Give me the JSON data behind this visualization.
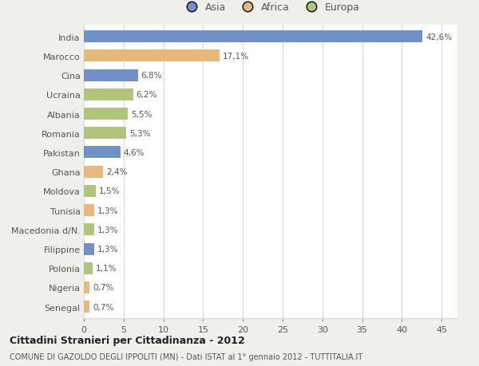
{
  "countries": [
    "India",
    "Marocco",
    "Cina",
    "Ucraina",
    "Albania",
    "Romania",
    "Pakistan",
    "Ghana",
    "Moldova",
    "Tunisia",
    "Macedonia d/N.",
    "Filippine",
    "Polonia",
    "Nigeria",
    "Senegal"
  ],
  "values": [
    42.6,
    17.1,
    6.8,
    6.2,
    5.5,
    5.3,
    4.6,
    2.4,
    1.5,
    1.3,
    1.3,
    1.3,
    1.1,
    0.7,
    0.7
  ],
  "labels": [
    "42,6%",
    "17,1%",
    "6,8%",
    "6,2%",
    "5,5%",
    "5,3%",
    "4,6%",
    "2,4%",
    "1,5%",
    "1,3%",
    "1,3%",
    "1,3%",
    "1,1%",
    "0,7%",
    "0,7%"
  ],
  "continents": [
    "Asia",
    "Africa",
    "Asia",
    "Europa",
    "Europa",
    "Europa",
    "Asia",
    "Africa",
    "Europa",
    "Africa",
    "Europa",
    "Asia",
    "Europa",
    "Africa",
    "Africa"
  ],
  "colors": {
    "Asia": "#7090c8",
    "Africa": "#e8b87a",
    "Europa": "#b0c47a"
  },
  "legend_labels": [
    "Asia",
    "Africa",
    "Europa"
  ],
  "title_main": "Cittadini Stranieri per Cittadinanza - 2012",
  "title_sub": "COMUNE DI GAZOLDO DEGLI IPPOLITI (MN) - Dati ISTAT al 1° gennaio 2012 - TUTTITALIA.IT",
  "xlim": [
    0,
    47
  ],
  "xticks": [
    0,
    5,
    10,
    15,
    20,
    25,
    30,
    35,
    40,
    45
  ],
  "background_color": "#f0f0eb",
  "plot_background": "#ffffff",
  "grid_color": "#d8d8d8"
}
